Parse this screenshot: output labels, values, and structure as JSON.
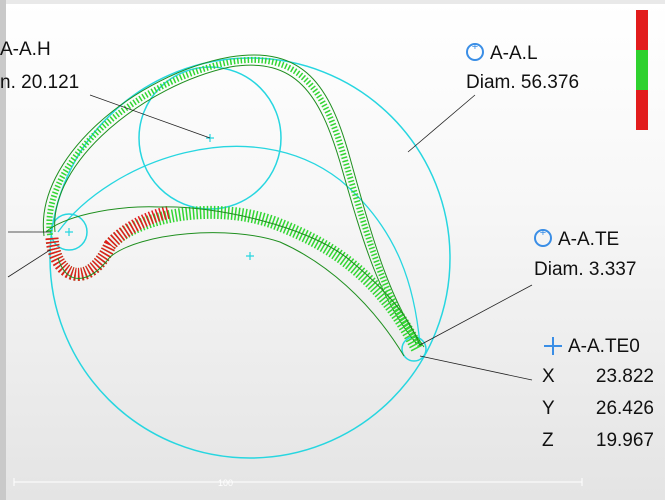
{
  "labels": {
    "hub": {
      "name": "A-A.H",
      "diam_text": "n.  20.121"
    },
    "leading": {
      "name": "A-A.L",
      "diam_text": "Diam.  56.376"
    },
    "trailing": {
      "name": "A-A.TE",
      "diam_text": "Diam.  3.337"
    },
    "point": {
      "name": "A-A.TE0",
      "coords": [
        {
          "axis": "X",
          "value": "23.822"
        },
        {
          "axis": "Y",
          "value": "26.426"
        },
        {
          "axis": "Z",
          "value": "19.967"
        }
      ]
    }
  },
  "scale_bar": {
    "text": "100"
  },
  "colors": {
    "circle": "#27d6e0",
    "upper_band": "#33d633",
    "lower_band": "#33d633",
    "deviation_high": "#e21c1c",
    "leader": "#222222",
    "icon_blue": "#3a8ee6"
  },
  "legend": {
    "segments": [
      "#e21c1c",
      "#2ed12e",
      "#e21c1c"
    ]
  },
  "icons": [
    "circle-feature-icon",
    "point-feature-icon"
  ]
}
